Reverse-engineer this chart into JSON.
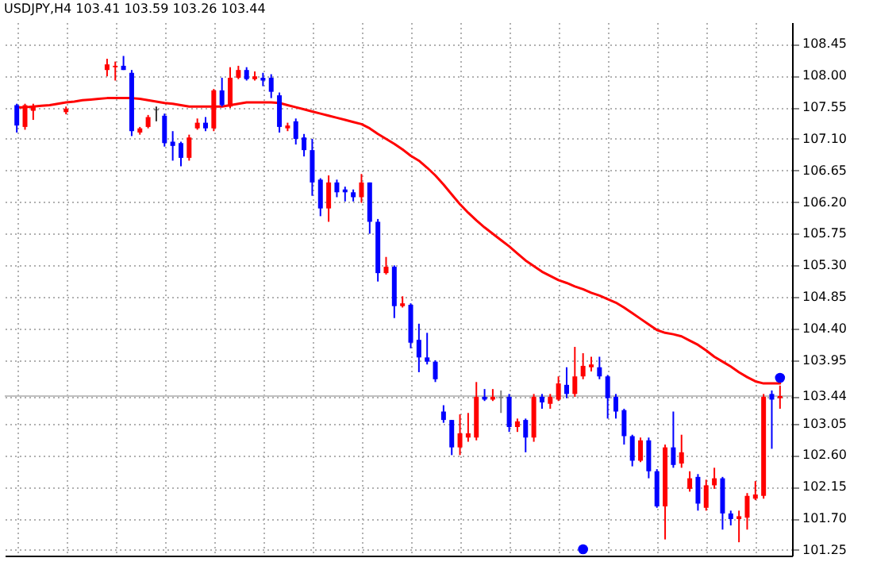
{
  "chart_data": {
    "type": "candlestick",
    "title": "USDJPY,H4  103.41 103.59 103.26 103.44",
    "categories": [
      null,
      null,
      null,
      null,
      null,
      null,
      null,
      null,
      null,
      null,
      null,
      null,
      null,
      null,
      null,
      null,
      null,
      null,
      null,
      null,
      null,
      null,
      null,
      null,
      null,
      null,
      null,
      null,
      null,
      null,
      null,
      null,
      null,
      null,
      null,
      null,
      null,
      null,
      null,
      null,
      null,
      null,
      null,
      null,
      null,
      null,
      null,
      null,
      null,
      null,
      null,
      null,
      null,
      null,
      null,
      null,
      null,
      null,
      null,
      null,
      null,
      null,
      null,
      null,
      null,
      null,
      null,
      null,
      null,
      null,
      null,
      null,
      null,
      null,
      null,
      null,
      null,
      null,
      null,
      null,
      null,
      null,
      null,
      null,
      null,
      null,
      null,
      null,
      null,
      null,
      null,
      null,
      null,
      null
    ],
    "ohlc": [
      [
        107.58,
        107.6,
        107.19,
        107.29
      ],
      [
        107.27,
        107.6,
        107.23,
        107.58
      ],
      [
        107.5,
        107.6,
        107.37,
        107.56
      ],
      null,
      null,
      null,
      [
        107.48,
        107.56,
        107.45,
        107.53
      ],
      null,
      null,
      null,
      null,
      [
        108.08,
        108.24,
        107.99,
        108.16
      ],
      [
        108.12,
        108.2,
        107.93,
        108.14
      ],
      [
        108.14,
        108.28,
        108.08,
        108.08
      ],
      [
        108.04,
        108.08,
        107.14,
        107.21
      ],
      [
        107.19,
        107.27,
        107.16,
        107.25
      ],
      [
        107.27,
        107.44,
        107.25,
        107.41
      ],
      [
        107.52,
        107.56,
        107.35,
        107.51
      ],
      [
        107.43,
        107.46,
        106.99,
        107.04
      ],
      [
        107.06,
        107.21,
        106.79,
        107.0
      ],
      [
        107.04,
        107.06,
        106.71,
        106.83
      ],
      [
        106.83,
        107.16,
        106.79,
        107.12
      ],
      [
        107.25,
        107.39,
        107.23,
        107.33
      ],
      [
        107.33,
        107.41,
        107.21,
        107.25
      ],
      [
        107.25,
        107.81,
        107.21,
        107.79
      ],
      [
        107.79,
        107.97,
        107.56,
        107.58
      ],
      [
        107.56,
        108.12,
        107.54,
        107.97
      ],
      [
        107.97,
        108.14,
        107.95,
        108.08
      ],
      [
        108.08,
        108.12,
        107.93,
        107.95
      ],
      [
        107.95,
        108.06,
        107.93,
        107.99
      ],
      [
        107.97,
        108.04,
        107.85,
        107.93
      ],
      [
        107.97,
        108.02,
        107.68,
        107.77
      ],
      [
        107.72,
        107.76,
        107.19,
        107.27
      ],
      [
        107.25,
        107.33,
        107.21,
        107.29
      ],
      [
        107.35,
        107.39,
        107.02,
        107.1
      ],
      [
        107.12,
        107.17,
        106.85,
        106.94
      ],
      [
        106.94,
        107.1,
        106.29,
        106.48
      ],
      [
        106.52,
        106.54,
        106.0,
        106.11
      ],
      [
        106.11,
        106.58,
        105.92,
        106.48
      ],
      [
        106.48,
        106.52,
        106.27,
        106.34
      ],
      [
        106.38,
        106.42,
        106.21,
        106.34
      ],
      [
        106.34,
        106.38,
        106.21,
        106.27
      ],
      [
        106.27,
        106.6,
        106.19,
        106.48
      ],
      [
        106.48,
        106.48,
        105.75,
        105.92
      ],
      [
        105.92,
        105.96,
        105.07,
        105.19
      ],
      [
        105.19,
        105.42,
        105.17,
        105.28
      ],
      [
        105.28,
        105.3,
        104.55,
        104.72
      ],
      [
        104.72,
        104.86,
        104.7,
        104.76
      ],
      [
        104.74,
        104.76,
        104.12,
        104.2
      ],
      [
        104.24,
        104.47,
        103.78,
        103.99
      ],
      [
        103.99,
        104.34,
        103.89,
        103.93
      ],
      [
        103.93,
        103.95,
        103.64,
        103.68
      ],
      [
        103.22,
        103.31,
        103.06,
        103.1
      ],
      [
        103.1,
        103.1,
        102.6,
        102.71
      ],
      [
        102.71,
        103.18,
        102.6,
        102.91
      ],
      [
        102.85,
        103.2,
        102.79,
        102.91
      ],
      [
        102.85,
        103.64,
        102.81,
        103.43
      ],
      [
        103.43,
        103.54,
        103.37,
        103.39
      ],
      [
        103.39,
        103.54,
        103.37,
        103.43
      ],
      [
        103.43,
        103.52,
        103.2,
        103.41
      ],
      [
        103.43,
        103.47,
        102.93,
        103.0
      ],
      [
        103.0,
        103.12,
        102.93,
        103.08
      ],
      [
        103.1,
        103.12,
        102.64,
        102.85
      ],
      [
        102.85,
        103.47,
        102.79,
        103.43
      ],
      [
        103.43,
        103.47,
        103.26,
        103.35
      ],
      [
        103.33,
        103.47,
        103.26,
        103.43
      ],
      [
        103.39,
        103.72,
        103.37,
        103.62
      ],
      [
        103.6,
        103.85,
        103.41,
        103.47
      ],
      [
        103.47,
        104.14,
        103.43,
        103.72
      ],
      [
        103.72,
        104.05,
        103.68,
        103.87
      ],
      [
        103.85,
        104.0,
        103.79,
        103.89
      ],
      [
        103.85,
        104.0,
        103.68,
        103.72
      ],
      [
        103.72,
        103.74,
        103.12,
        103.41
      ],
      [
        103.43,
        103.47,
        103.12,
        103.22
      ],
      [
        103.24,
        103.26,
        102.75,
        102.87
      ],
      [
        102.87,
        102.89,
        102.44,
        102.52
      ],
      [
        102.52,
        102.85,
        102.5,
        102.81
      ],
      [
        102.81,
        102.85,
        102.27,
        102.37
      ],
      [
        102.37,
        102.4,
        101.85,
        101.87
      ],
      [
        101.87,
        102.75,
        101.4,
        102.71
      ],
      [
        102.71,
        103.22,
        102.42,
        102.46
      ],
      [
        102.48,
        102.89,
        102.42,
        102.64
      ],
      [
        102.12,
        102.37,
        102.08,
        102.27
      ],
      [
        102.29,
        102.33,
        101.81,
        101.91
      ],
      [
        101.85,
        102.25,
        101.81,
        102.17
      ],
      [
        102.17,
        102.42,
        102.12,
        102.27
      ],
      [
        102.27,
        102.29,
        101.54,
        101.77
      ],
      [
        101.77,
        101.81,
        101.6,
        101.69
      ],
      [
        101.69,
        101.81,
        101.36,
        101.73
      ],
      [
        101.71,
        102.06,
        101.54,
        102.02
      ],
      [
        101.98,
        102.23,
        101.96,
        102.04
      ],
      [
        102.02,
        103.47,
        101.98,
        103.43
      ],
      [
        103.47,
        103.52,
        102.69,
        103.39
      ],
      [
        103.41,
        103.59,
        103.26,
        103.44
      ]
    ],
    "colors": [
      "#0000ff",
      "#ff0000",
      "#ff0000",
      null,
      null,
      null,
      "#ff0000",
      null,
      null,
      null,
      null,
      "#ff0000",
      "#ff0000",
      "#0000ff",
      "#0000ff",
      "#ff0000",
      "#ff0000",
      "#333333",
      "#0000ff",
      "#0000ff",
      "#0000ff",
      "#ff0000",
      "#ff0000",
      "#0000ff",
      "#ff0000",
      "#0000ff",
      "#ff0000",
      "#ff0000",
      "#0000ff",
      "#ff0000",
      "#0000ff",
      "#0000ff",
      "#0000ff",
      "#ff0000",
      "#0000ff",
      "#0000ff",
      "#0000ff",
      "#0000ff",
      "#ff0000",
      "#0000ff",
      "#0000ff",
      "#0000ff",
      "#ff0000",
      "#0000ff",
      "#0000ff",
      "#ff0000",
      "#0000ff",
      "#ff0000",
      "#0000ff",
      "#0000ff",
      "#0000ff",
      "#0000ff",
      "#0000ff",
      "#0000ff",
      "#ff0000",
      "#ff0000",
      "#ff0000",
      "#0000ff",
      "#ff0000",
      "#808080",
      "#0000ff",
      "#ff0000",
      "#0000ff",
      "#ff0000",
      "#0000ff",
      "#ff0000",
      "#ff0000",
      "#0000ff",
      "#ff0000",
      "#ff0000",
      "#ff0000",
      "#0000ff",
      "#0000ff",
      "#0000ff",
      "#0000ff",
      "#0000ff",
      "#ff0000",
      "#0000ff",
      "#0000ff",
      "#ff0000",
      "#0000ff",
      "#ff0000",
      "#ff0000",
      "#0000ff",
      "#ff0000",
      "#ff0000",
      "#0000ff",
      "#0000ff",
      "#ff0000",
      "#ff0000",
      "#ff0000",
      "#ff0000",
      "#0000ff",
      "#ff0000"
    ],
    "series": [
      {
        "type": "line",
        "color": "#ff0000",
        "values": [
          107.55,
          107.55,
          107.56,
          107.57,
          107.58,
          107.6,
          107.62,
          107.63,
          107.65,
          107.66,
          107.67,
          107.68,
          107.68,
          107.68,
          107.68,
          107.67,
          107.65,
          107.63,
          107.61,
          107.6,
          107.58,
          107.56,
          107.56,
          107.56,
          107.56,
          107.56,
          107.58,
          107.6,
          107.62,
          107.62,
          107.62,
          107.62,
          107.61,
          107.58,
          107.55,
          107.52,
          107.49,
          107.46,
          107.43,
          107.4,
          107.37,
          107.34,
          107.31,
          107.25,
          107.17,
          107.1,
          107.03,
          106.95,
          106.86,
          106.79,
          106.69,
          106.58,
          106.45,
          106.31,
          106.17,
          106.05,
          105.94,
          105.84,
          105.75,
          105.66,
          105.57,
          105.47,
          105.37,
          105.29,
          105.21,
          105.15,
          105.09,
          105.05,
          105.0,
          104.96,
          104.91,
          104.87,
          104.82,
          104.77,
          104.7,
          104.62,
          104.54,
          104.46,
          104.38,
          104.34,
          104.32,
          104.29,
          104.23,
          104.17,
          104.09,
          104.0,
          103.93,
          103.86,
          103.78,
          103.71,
          103.65,
          103.62,
          103.62,
          103.62
        ]
      },
      {
        "type": "scatter",
        "color": "#0000ff",
        "marker": "circle",
        "values": [
          null,
          null,
          null,
          null,
          null,
          null,
          null,
          null,
          null,
          null,
          null,
          null,
          null,
          null,
          null,
          null,
          null,
          null,
          null,
          null,
          null,
          null,
          null,
          null,
          null,
          null,
          null,
          null,
          null,
          null,
          null,
          null,
          null,
          null,
          null,
          null,
          null,
          null,
          null,
          null,
          null,
          null,
          null,
          null,
          null,
          null,
          null,
          null,
          null,
          null,
          null,
          null,
          null,
          null,
          null,
          null,
          null,
          null,
          null,
          null,
          null,
          null,
          null,
          null,
          null,
          null,
          null,
          null,
          null,
          101.26,
          null,
          null,
          null,
          null,
          null,
          null,
          null,
          null,
          null,
          null,
          null,
          null,
          null,
          null,
          null,
          null,
          null,
          null,
          null,
          null,
          null,
          null,
          null,
          103.7
        ]
      }
    ],
    "ylim": [
      101.17,
      108.76
    ],
    "yticks": [
      101.25,
      {
        "value": 101.7,
        "label": "101.70"
      },
      102.15,
      {
        "value": 102.6,
        "label": "102.60"
      },
      103.05,
      103.44,
      103.95,
      {
        "value": 104.4,
        "label": "104.40"
      },
      104.85,
      {
        "value": 105.3,
        "label": "105.30"
      },
      105.75,
      {
        "value": 106.2,
        "label": "106.20"
      },
      106.65,
      {
        "value": 107.1,
        "label": "107.10"
      },
      107.55,
      {
        "value": 108,
        "label": "108.00"
      },
      108.45
    ],
    "ref_lines": [
      {
        "axis": "y",
        "value": 103.44,
        "color": "#c0c0c0"
      }
    ],
    "grid": true,
    "tick_labels": "y"
  }
}
